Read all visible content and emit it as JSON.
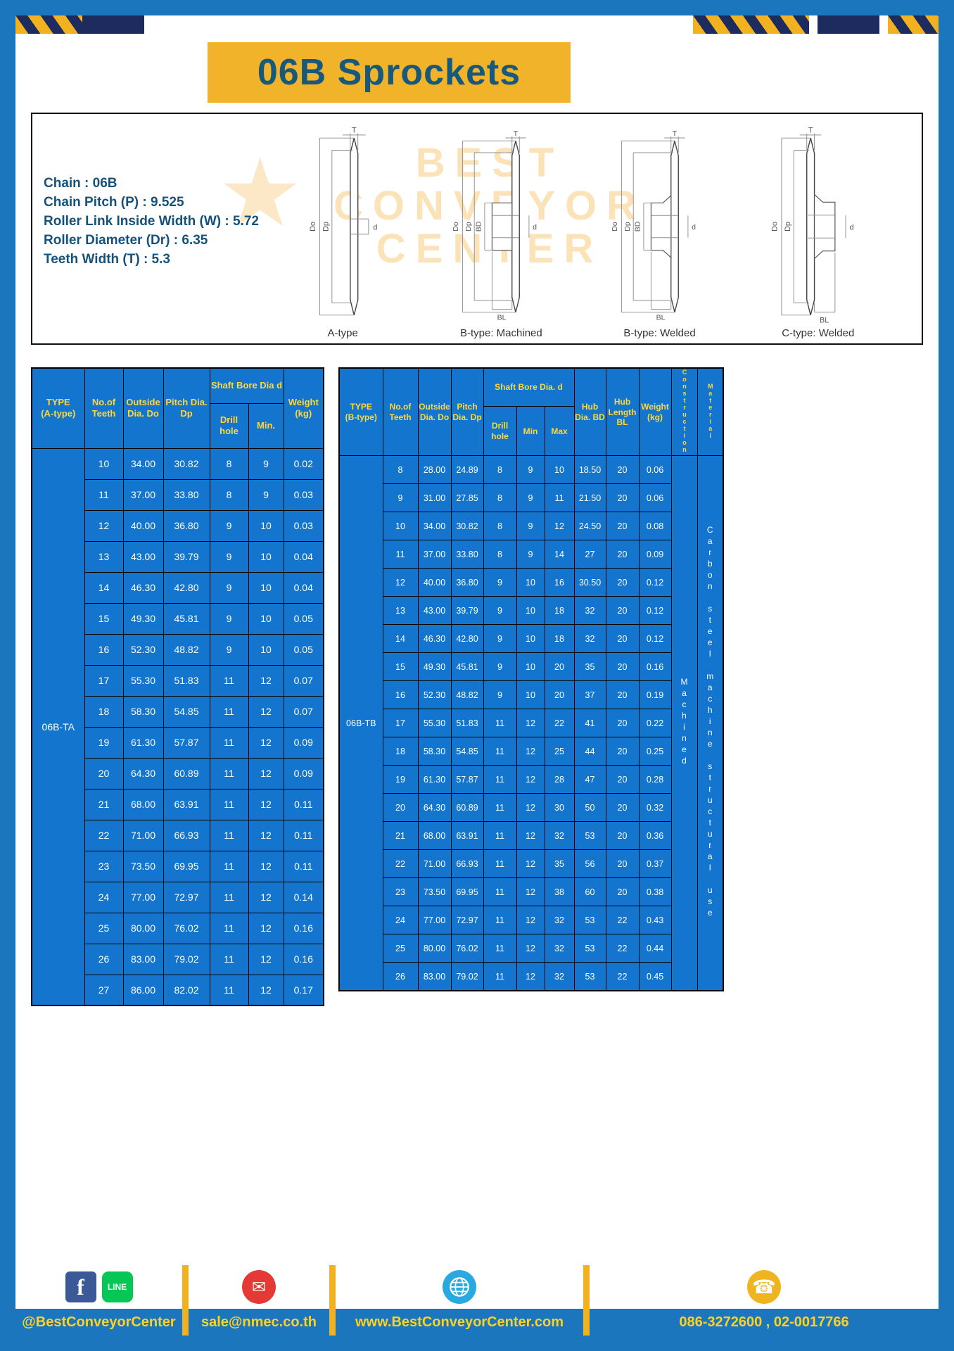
{
  "colors": {
    "frame_blue": "#1b76bd",
    "banner_yellow": "#f0b32a",
    "table_blue": "#1375cd",
    "header_yellow": "#ffd83a",
    "title_text": "#17597d"
  },
  "header": {
    "title": "06B Sprockets"
  },
  "specs": {
    "lines": [
      "Chain : 06B",
      "Chain Pitch (P) : 9.525",
      "Roller Link Inside Width (W) : 5.72",
      "Roller Diameter (Dr) : 6.35",
      "Teeth Width (T) : 5.3"
    ]
  },
  "watermark": {
    "line1": "BEST",
    "line2": "CONVEYOR",
    "line3": "CENTER",
    "star": "★"
  },
  "dims": {
    "t": "T",
    "do_": "Do",
    "dp": "Dp",
    "d": "d",
    "bd": "BD",
    "bl": "BL"
  },
  "diagrams": {
    "captions": [
      "A-type",
      "B-type: Machined",
      "B-type: Welded",
      "C-type: Welded"
    ]
  },
  "tableA": {
    "header": {
      "type": "TYPE",
      "type_sub": "(A-type)",
      "teeth": "No.of Teeth",
      "outside": "Outside Dia. Do",
      "pitch": "Pitch Dia. Dp",
      "shaft": "Shaft Bore Dia d",
      "drill": "Drill hole",
      "min": "Min.",
      "weight": "Weight (kg)"
    },
    "type_label": "06B-TA",
    "rows": [
      [
        "10",
        "34.00",
        "30.82",
        "8",
        "9",
        "0.02"
      ],
      [
        "11",
        "37.00",
        "33.80",
        "8",
        "9",
        "0.03"
      ],
      [
        "12",
        "40.00",
        "36.80",
        "9",
        "10",
        "0.03"
      ],
      [
        "13",
        "43.00",
        "39.79",
        "9",
        "10",
        "0.04"
      ],
      [
        "14",
        "46.30",
        "42.80",
        "9",
        "10",
        "0.04"
      ],
      [
        "15",
        "49.30",
        "45.81",
        "9",
        "10",
        "0.05"
      ],
      [
        "16",
        "52.30",
        "48.82",
        "9",
        "10",
        "0.05"
      ],
      [
        "17",
        "55.30",
        "51.83",
        "11",
        "12",
        "0.07"
      ],
      [
        "18",
        "58.30",
        "54.85",
        "11",
        "12",
        "0.07"
      ],
      [
        "19",
        "61.30",
        "57.87",
        "11",
        "12",
        "0.09"
      ],
      [
        "20",
        "64.30",
        "60.89",
        "11",
        "12",
        "0.09"
      ],
      [
        "21",
        "68.00",
        "63.91",
        "11",
        "12",
        "0.11"
      ],
      [
        "22",
        "71.00",
        "66.93",
        "11",
        "12",
        "0.11"
      ],
      [
        "23",
        "73.50",
        "69.95",
        "11",
        "12",
        "0.11"
      ],
      [
        "24",
        "77.00",
        "72.97",
        "11",
        "12",
        "0.14"
      ],
      [
        "25",
        "80.00",
        "76.02",
        "11",
        "12",
        "0.16"
      ],
      [
        "26",
        "83.00",
        "79.02",
        "11",
        "12",
        "0.16"
      ],
      [
        "27",
        "86.00",
        "82.02",
        "11",
        "12",
        "0.17"
      ]
    ]
  },
  "tableB": {
    "header": {
      "type": "TYPE",
      "type_sub": "(B-type)",
      "teeth": "No.of Teeth",
      "outside": "Outside Dia. Do",
      "pitch": "Pitch Dia. Dp",
      "shaft": "Shaft Bore Dia. d",
      "drill": "Drill hole",
      "min": "Min",
      "max": "Max",
      "hub_dia": "Hub Dia. BD",
      "hub_len": "Hub Length BL",
      "weight": "Weight (kg)",
      "construction": "Construction",
      "material": "Material"
    },
    "type_label": "06B-TB",
    "construction_value": "Machined",
    "material_value": "Carbon steel machine structural use",
    "rows": [
      [
        "8",
        "28.00",
        "24.89",
        "8",
        "9",
        "10",
        "18.50",
        "20",
        "0.06"
      ],
      [
        "9",
        "31.00",
        "27.85",
        "8",
        "9",
        "11",
        "21.50",
        "20",
        "0.06"
      ],
      [
        "10",
        "34.00",
        "30.82",
        "8",
        "9",
        "12",
        "24.50",
        "20",
        "0.08"
      ],
      [
        "11",
        "37.00",
        "33.80",
        "8",
        "9",
        "14",
        "27",
        "20",
        "0.09"
      ],
      [
        "12",
        "40.00",
        "36.80",
        "9",
        "10",
        "16",
        "30.50",
        "20",
        "0.12"
      ],
      [
        "13",
        "43.00",
        "39.79",
        "9",
        "10",
        "18",
        "32",
        "20",
        "0.12"
      ],
      [
        "14",
        "46.30",
        "42.80",
        "9",
        "10",
        "18",
        "32",
        "20",
        "0.12"
      ],
      [
        "15",
        "49.30",
        "45.81",
        "9",
        "10",
        "20",
        "35",
        "20",
        "0.16"
      ],
      [
        "16",
        "52.30",
        "48.82",
        "9",
        "10",
        "20",
        "37",
        "20",
        "0.19"
      ],
      [
        "17",
        "55.30",
        "51.83",
        "11",
        "12",
        "22",
        "41",
        "20",
        "0.22"
      ],
      [
        "18",
        "58.30",
        "54.85",
        "11",
        "12",
        "25",
        "44",
        "20",
        "0.25"
      ],
      [
        "19",
        "61.30",
        "57.87",
        "11",
        "12",
        "28",
        "47",
        "20",
        "0.28"
      ],
      [
        "20",
        "64.30",
        "60.89",
        "11",
        "12",
        "30",
        "50",
        "20",
        "0.32"
      ],
      [
        "21",
        "68.00",
        "63.91",
        "11",
        "12",
        "32",
        "53",
        "20",
        "0.36"
      ],
      [
        "22",
        "71.00",
        "66.93",
        "11",
        "12",
        "35",
        "56",
        "20",
        "0.37"
      ],
      [
        "23",
        "73.50",
        "69.95",
        "11",
        "12",
        "38",
        "60",
        "20",
        "0.38"
      ],
      [
        "24",
        "77.00",
        "72.97",
        "11",
        "12",
        "32",
        "53",
        "22",
        "0.43"
      ],
      [
        "25",
        "80.00",
        "76.02",
        "11",
        "12",
        "32",
        "53",
        "22",
        "0.44"
      ],
      [
        "26",
        "83.00",
        "79.02",
        "11",
        "12",
        "32",
        "53",
        "22",
        "0.45"
      ]
    ]
  },
  "footer": {
    "facebook_handle": "@BestConveyorCenter",
    "email": "sale@nmec.co.th",
    "website": "www.BestConveyorCenter.com",
    "phones": "086-3272600 , 02-0017766"
  }
}
